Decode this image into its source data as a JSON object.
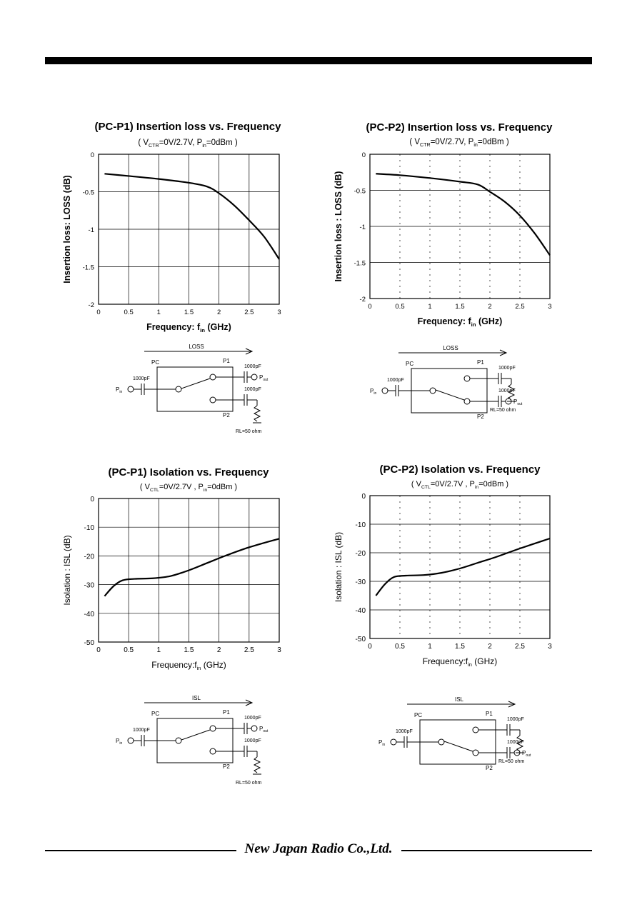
{
  "footer": {
    "company": "New Japan Radio Co.,Ltd."
  },
  "charts": [
    {
      "id": "pcp1-loss",
      "title": "(PC-P1) Insertion loss vs. Frequency",
      "subtitle_parts": [
        "( V",
        "CTR",
        "=0V/2.7V, P",
        "in",
        "=0dBm )"
      ],
      "ylabel": "Insertion loss: LOSS  (dB)",
      "xlabel_parts": [
        "Frequency: f",
        "in",
        " (GHz)"
      ],
      "mono": false,
      "diagram": {
        "arrow": "LOSS",
        "output": "P1"
      }
    },
    {
      "id": "pcp2-loss",
      "title": "(PC-P2) Insertion loss vs. Frequency",
      "subtitle_parts": [
        "( V",
        "CTR",
        "=0V/2.7V, P",
        "in",
        "=0dBm )"
      ],
      "ylabel": "Insertion loss : LOSS (dB)",
      "xlabel_parts": [
        "Frequency: f",
        "in",
        " (GHz)"
      ],
      "mono": false,
      "diagram": {
        "arrow": "LOSS",
        "output": "P2"
      }
    },
    {
      "id": "pcp1-isl",
      "title": "(PC-P1) Isolation vs. Frequency",
      "subtitle_parts": [
        "( V",
        "CTL",
        "=0V/2.7V , P",
        "in",
        "=0dBm )"
      ],
      "ylabel": "Isolation : ISL (dB)",
      "xlabel_parts": [
        "Frequency:f",
        "in",
        " (GHz)"
      ],
      "mono": true,
      "diagram": {
        "arrow": "ISL",
        "output": "P1"
      }
    },
    {
      "id": "pcp2-isl",
      "title": "(PC-P2) Isolation vs. Frequency",
      "subtitle_parts": [
        "( V",
        "CTL",
        "=0V/2.7V , P",
        "in",
        "=0dBm )"
      ],
      "ylabel": "Isolation : ISL (dB)",
      "xlabel_parts": [
        "Frequency:f",
        "in",
        " (GHz)"
      ],
      "mono": true,
      "diagram": {
        "arrow": "ISL",
        "output": "P2"
      }
    }
  ],
  "diagram_labels": {
    "pc": "PC",
    "p1": "P1",
    "p2": "P2",
    "pin": "P",
    "pin_sub": "in",
    "pout": "P",
    "pout_sub": "out",
    "cap": "1000pF",
    "rl": "RL=50 ohm"
  },
  "chart_data": [
    {
      "type": "line",
      "title": "(PC-P1) Insertion loss vs. Frequency",
      "xlabel": "Frequency: fin (GHz)",
      "ylabel": "Insertion loss: LOSS  (dB)",
      "xlim": [
        0,
        3
      ],
      "ylim": [
        -2,
        0
      ],
      "xticks": [
        "0",
        "0.5",
        "1",
        "1.5",
        "2",
        "2.5",
        "3"
      ],
      "yticks": [
        "0",
        "-0.5",
        "-1",
        "-1.5",
        "-2"
      ],
      "grid": true,
      "series": [
        {
          "x": [
            0.1,
            0.5,
            1,
            1.5,
            1.8,
            2,
            2.25,
            2.5,
            2.75,
            3
          ],
          "y": [
            -0.26,
            -0.29,
            -0.33,
            -0.38,
            -0.43,
            -0.52,
            -0.68,
            -0.88,
            -1.1,
            -1.4
          ]
        }
      ]
    },
    {
      "type": "line",
      "title": "(PC-P2) Insertion loss vs. Frequency",
      "xlabel": "Frequency: fin (GHz)",
      "ylabel": "Insertion loss : LOSS (dB)",
      "xlim": [
        0,
        3
      ],
      "ylim": [
        -2,
        0
      ],
      "xticks": [
        "0",
        "0.5",
        "1",
        "1.5",
        "2",
        "2.5",
        "3"
      ],
      "yticks": [
        "0",
        "-0.5",
        "-1",
        "-1.5",
        "-2"
      ],
      "grid": true,
      "series": [
        {
          "x": [
            0.1,
            0.5,
            1,
            1.5,
            1.8,
            2,
            2.25,
            2.5,
            2.75,
            3
          ],
          "y": [
            -0.27,
            -0.29,
            -0.33,
            -0.38,
            -0.42,
            -0.52,
            -0.66,
            -0.85,
            -1.1,
            -1.4
          ]
        }
      ]
    },
    {
      "type": "line",
      "title": "(PC-P1) Isolation vs. Frequency",
      "xlabel": "Frequency:fin (GHz)",
      "ylabel": "Isolation : ISL (dB)",
      "xlim": [
        0,
        3
      ],
      "ylim": [
        -50,
        0
      ],
      "xticks": [
        "0",
        "0.5",
        "1",
        "1.5",
        "2",
        "2.5",
        "3"
      ],
      "yticks": [
        "0",
        "-10",
        "-20",
        "-30",
        "-40",
        "-50"
      ],
      "grid": true,
      "series": [
        {
          "x": [
            0.1,
            0.25,
            0.4,
            0.6,
            0.9,
            1.2,
            1.5,
            1.8,
            2.1,
            2.5,
            3
          ],
          "y": [
            -34,
            -30.5,
            -28.5,
            -28,
            -27.8,
            -27,
            -25,
            -22.5,
            -20,
            -17,
            -14
          ]
        }
      ]
    },
    {
      "type": "line",
      "title": "(PC-P2) Isolation vs. Frequency",
      "xlabel": "Frequency:fin (GHz)",
      "ylabel": "Isolation : ISL (dB)",
      "xlim": [
        0,
        3
      ],
      "ylim": [
        -50,
        0
      ],
      "xticks": [
        "0",
        "0.5",
        "1",
        "1.5",
        "2",
        "2.5",
        "3"
      ],
      "yticks": [
        "0",
        "-10",
        "-20",
        "-30",
        "-40",
        "-50"
      ],
      "grid": true,
      "series": [
        {
          "x": [
            0.1,
            0.25,
            0.4,
            0.6,
            0.9,
            1.2,
            1.5,
            1.8,
            2.1,
            2.5,
            3
          ],
          "y": [
            -35,
            -31,
            -28.5,
            -28,
            -27.8,
            -27,
            -25.5,
            -23.5,
            -21.5,
            -18.5,
            -15
          ]
        }
      ]
    }
  ]
}
